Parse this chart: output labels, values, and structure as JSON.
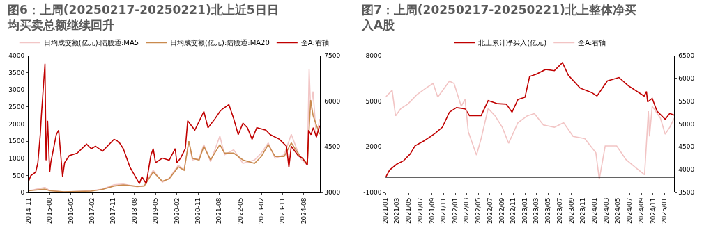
{
  "chart_data": [
    {
      "type": "line",
      "title": "图6：上周(20250217-20250221)北上近5日日均买卖总额继续回升",
      "legend": "top",
      "xlim": [
        "2014-11-01",
        "2025-03-01"
      ],
      "xticks": [
        "2014-11",
        "2015-08",
        "2016-05",
        "2017-02",
        "2017-11",
        "2018-08",
        "2019-05",
        "2020-02",
        "2020-11",
        "2021-08",
        "2022-05",
        "2023-02",
        "2023-11",
        "2024-08"
      ],
      "ylim": [
        0,
        4000
      ],
      "yticks": [
        0,
        500,
        1000,
        1500,
        2000,
        2500,
        3000,
        3500,
        4000
      ],
      "y2lim": [
        3000,
        7500
      ],
      "y2ticks": [
        3000,
        4500,
        6000,
        7500
      ],
      "series": [
        {
          "name": "日均成交额(亿元):陆股通:MA5",
          "color": "#f2c6c6",
          "x": [
            "2014-11-01",
            "2015-06-01",
            "2015-08-01",
            "2016-02-01",
            "2017-01-20",
            "2017-06-15",
            "2017-11-10",
            "2018-03-10",
            "2018-09-05",
            "2018-12-05",
            "2019-04-01",
            "2019-07-28",
            "2019-10-25",
            "2020-02-20",
            "2020-05-05",
            "2020-07-05",
            "2020-08-20",
            "2020-11-15",
            "2021-01-15",
            "2021-04-12",
            "2021-08-10",
            "2021-10-10",
            "2022-02-05",
            "2022-06-05",
            "2022-11-01",
            "2023-01-28",
            "2023-04-28",
            "2023-07-25",
            "2023-11-20",
            "2024-02-20",
            "2024-06-15",
            "2024-09-15",
            "2024-10-08",
            "2024-10-28",
            "2024-11-28",
            "2025-01-10",
            "2025-02-21"
          ],
          "values": [
            50,
            150,
            60,
            20,
            50,
            100,
            230,
            250,
            170,
            200,
            650,
            300,
            420,
            800,
            650,
            1500,
            950,
            1000,
            1400,
            900,
            1650,
            1100,
            1250,
            850,
            950,
            1150,
            1450,
            1000,
            1100,
            1700,
            1000,
            800,
            3600,
            2400,
            2950,
            1600,
            2150
          ]
        },
        {
          "name": "日均成交额(亿元):陆股通:MA20",
          "color": "#c98a4e",
          "x": [
            "2014-11-01",
            "2015-06-01",
            "2015-08-01",
            "2016-02-01",
            "2017-01-20",
            "2017-06-15",
            "2017-11-10",
            "2018-03-10",
            "2018-09-05",
            "2018-12-05",
            "2019-04-01",
            "2019-07-28",
            "2019-10-25",
            "2020-02-20",
            "2020-05-05",
            "2020-07-05",
            "2020-08-20",
            "2020-11-15",
            "2021-01-15",
            "2021-04-12",
            "2021-08-10",
            "2021-10-10",
            "2022-02-05",
            "2022-06-05",
            "2022-11-01",
            "2023-01-28",
            "2023-04-28",
            "2023-07-25",
            "2023-11-20",
            "2024-02-20",
            "2024-06-15",
            "2024-09-15",
            "2024-10-28",
            "2024-11-28",
            "2025-02-21"
          ],
          "values": [
            50,
            100,
            50,
            20,
            40,
            90,
            190,
            220,
            180,
            190,
            600,
            330,
            400,
            750,
            650,
            1500,
            1000,
            950,
            1350,
            950,
            1400,
            1150,
            1150,
            950,
            850,
            1050,
            1400,
            1050,
            1050,
            1450,
            1050,
            850,
            2700,
            2250,
            1700
          ]
        },
        {
          "name": "全A:右轴",
          "color": "#c00000",
          "axis": "y2",
          "x": [
            "2014-11-01",
            "2014-12-01",
            "2015-02-01",
            "2015-03-01",
            "2015-04-01",
            "2015-04-15",
            "2015-06-01",
            "2015-06-15",
            "2015-07-05",
            "2015-08-01",
            "2015-08-15",
            "2015-10-25",
            "2015-11-25",
            "2016-01-15",
            "2016-02-10",
            "2016-04-10",
            "2016-07-20",
            "2016-11-20",
            "2017-01-20",
            "2017-03-15",
            "2017-06-15",
            "2017-11-10",
            "2018-01-10",
            "2018-03-10",
            "2018-06-05",
            "2018-10-05",
            "2018-11-05",
            "2019-01-01",
            "2019-03-01",
            "2019-04-01",
            "2019-05-01",
            "2019-07-28",
            "2019-10-25",
            "2020-01-10",
            "2020-02-01",
            "2020-03-20",
            "2020-05-20",
            "2020-06-20",
            "2020-09-20",
            "2021-01-15",
            "2021-03-10",
            "2021-06-10",
            "2021-08-10",
            "2021-09-10",
            "2021-12-05",
            "2022-02-05",
            "2022-04-05",
            "2022-06-05",
            "2022-08-01",
            "2022-10-01",
            "2022-12-01",
            "2023-03-28",
            "2023-05-25",
            "2023-09-20",
            "2023-12-20",
            "2024-01-20",
            "2024-02-20",
            "2024-05-20",
            "2024-07-15",
            "2024-09-15",
            "2024-10-01",
            "2024-11-01",
            "2024-12-01",
            "2025-01-10",
            "2025-02-21"
          ],
          "values": [
            3370,
            3560,
            3670,
            3980,
            4900,
            5510,
            7230,
            4060,
            5360,
            3670,
            3980,
            4900,
            5050,
            3520,
            3980,
            4210,
            4290,
            4590,
            4440,
            4520,
            4360,
            4750,
            4670,
            4440,
            3830,
            3290,
            3520,
            3290,
            4210,
            4440,
            3980,
            4130,
            4060,
            4440,
            3980,
            4130,
            4440,
            5360,
            5050,
            5660,
            5130,
            5430,
            5660,
            5740,
            5890,
            5430,
            4900,
            5280,
            5130,
            4750,
            5130,
            5050,
            4900,
            4750,
            4520,
            3830,
            4520,
            4210,
            4130,
            3900,
            5050,
            4900,
            5130,
            4820,
            5200
          ]
        }
      ]
    },
    {
      "type": "line",
      "title": "图7：上周(20250217-20250221)北上整体净买入A股",
      "legend": "top",
      "xlim": [
        "2021-01-01",
        "2025-02-21"
      ],
      "xticks": [
        {
          "value": "2021-01",
          "label": "2021/01"
        },
        {
          "value": "2021-03",
          "label": "2021/03"
        },
        {
          "value": "2021-05",
          "label": "2021/05"
        },
        {
          "value": "2021-07",
          "label": "2021/07"
        },
        {
          "value": "2021-09",
          "label": "2021/09"
        },
        {
          "value": "2021-11",
          "label": "2021/11"
        },
        {
          "value": "2022-01",
          "label": "2022/01"
        },
        {
          "value": "2022-03",
          "label": "2022/03"
        },
        {
          "value": "2022-05",
          "label": "2022/05"
        },
        {
          "value": "2022-07",
          "label": "2022/07"
        },
        {
          "value": "2022-09",
          "label": "2022/09"
        },
        {
          "value": "2022-11",
          "label": "2022/11"
        },
        {
          "value": "2023-01",
          "label": "2023/01"
        },
        {
          "value": "2023-03",
          "label": "2023/03"
        },
        {
          "value": "2023-05",
          "label": "2023/05"
        },
        {
          "value": "2023-07",
          "label": "2023/07"
        },
        {
          "value": "2023-09",
          "label": "2023/09"
        },
        {
          "value": "2023-11",
          "label": "2023/11"
        },
        {
          "value": "2024-01",
          "label": "2024/01"
        },
        {
          "value": "2024-03",
          "label": "2024/03"
        },
        {
          "value": "2024-05",
          "label": "2024/05"
        },
        {
          "value": "2024-07",
          "label": "2024/07"
        },
        {
          "value": "2024-09",
          "label": "2024/09"
        },
        {
          "value": "2024-11",
          "label": "2024/11"
        },
        {
          "value": "2025-01",
          "label": "2025/01"
        }
      ],
      "ylim": [
        -1000,
        8000
      ],
      "yticks": [
        -1000,
        2000,
        5000,
        8000
      ],
      "y2lim": [
        3500,
        6500
      ],
      "y2ticks": [
        3500,
        4000,
        4500,
        5000,
        5500,
        6000,
        6500
      ],
      "ref_lines": [
        {
          "axis": "y",
          "value": 0,
          "color": "#000000"
        }
      ],
      "series": [
        {
          "name": "北上累计净买入(亿元)",
          "color": "#c00000",
          "x": [
            "2021-01-01",
            "2021-01-22",
            "2021-02-28",
            "2021-04-04",
            "2021-05-10",
            "2021-06-04",
            "2021-07-19",
            "2021-08-25",
            "2021-09-19",
            "2021-10-25",
            "2021-12-01",
            "2022-01-07",
            "2022-02-21",
            "2022-03-16",
            "2022-05-16",
            "2022-06-22",
            "2022-08-10",
            "2022-09-25",
            "2022-10-25",
            "2022-11-25",
            "2023-01-01",
            "2023-01-25",
            "2023-03-01",
            "2023-04-19",
            "2023-06-04",
            "2023-07-16",
            "2023-08-16",
            "2023-10-16",
            "2023-12-16",
            "2024-01-13",
            "2024-03-07",
            "2024-05-07",
            "2024-06-25",
            "2024-09-16",
            "2024-09-28",
            "2024-10-04",
            "2024-10-28",
            "2024-11-22",
            "2025-01-04",
            "2025-01-28",
            "2025-02-21"
          ],
          "values": [
            0,
            480,
            860,
            1080,
            1540,
            2070,
            2380,
            2680,
            2910,
            3290,
            4280,
            4580,
            4500,
            4050,
            4050,
            5040,
            4840,
            4810,
            4280,
            5110,
            5260,
            6630,
            6780,
            7090,
            7010,
            7540,
            6710,
            5870,
            5570,
            5340,
            6330,
            6560,
            6020,
            5340,
            5640,
            4960,
            5190,
            4350,
            3820,
            4200,
            4080
          ]
        },
        {
          "name": "全A:右轴",
          "color": "#f2c4c4",
          "axis": "y2",
          "x": [
            "2021-01-01",
            "2021-02-04",
            "2021-02-22",
            "2021-03-22",
            "2021-04-28",
            "2021-06-13",
            "2021-08-01",
            "2021-09-07",
            "2021-10-01",
            "2021-12-01",
            "2021-12-25",
            "2022-02-01",
            "2022-02-21",
            "2022-03-10",
            "2022-04-22",
            "2022-05-16",
            "2022-06-22",
            "2022-07-28",
            "2022-09-04",
            "2022-10-07",
            "2022-11-25",
            "2023-01-13",
            "2023-02-19",
            "2023-04-07",
            "2023-06-04",
            "2023-07-22",
            "2023-09-10",
            "2023-11-10",
            "2024-01-07",
            "2024-01-25",
            "2024-02-25",
            "2024-04-25",
            "2024-06-13",
            "2024-08-10",
            "2024-09-18",
            "2024-10-08",
            "2024-10-14",
            "2024-10-28",
            "2024-12-10",
            "2025-01-04",
            "2025-01-28",
            "2025-02-21"
          ],
          "values": [
            5590,
            5740,
            5180,
            5340,
            5440,
            5640,
            5790,
            5890,
            5590,
            5940,
            5890,
            5390,
            5540,
            4830,
            4320,
            4680,
            5340,
            5180,
            4930,
            4580,
            5030,
            5180,
            5230,
            4980,
            4930,
            5030,
            4730,
            4680,
            4370,
            3790,
            4520,
            4520,
            4220,
            4020,
            3890,
            5280,
            4730,
            5390,
            5130,
            4780,
            4930,
            5130
          ]
        }
      ]
    }
  ]
}
